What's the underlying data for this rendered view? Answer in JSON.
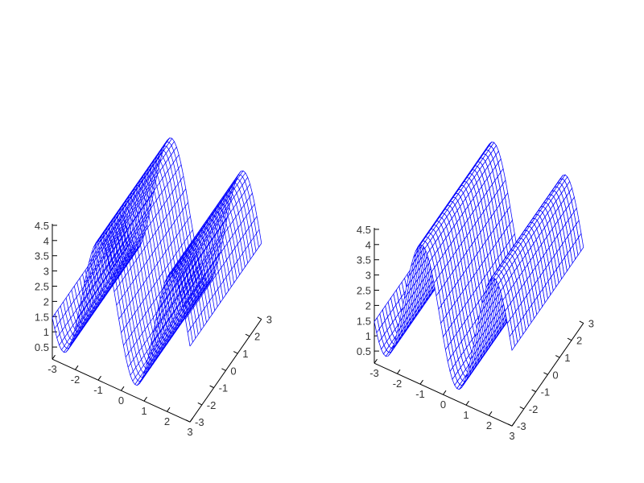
{
  "chart_data": [
    {
      "type": "surface",
      "title": "",
      "xlabel": "",
      "ylabel": "",
      "zlabel": "",
      "grid": false,
      "legend": "none",
      "hidden_surface_removal": false,
      "mesh_color": "#0000ff",
      "x_range": [
        -3,
        3
      ],
      "y_range": [
        -3,
        3
      ],
      "z_range": [
        0,
        4.5
      ],
      "x_ticks": [
        "-3",
        "-2",
        "-1",
        "0",
        "1",
        "2",
        "3"
      ],
      "y_ticks": [
        "-3",
        "-2",
        "-1",
        "0",
        "1",
        "2",
        "3"
      ],
      "z_ticks": [
        "0.5",
        "1",
        "1.5",
        "2",
        "2.5",
        "3",
        "3.5",
        "4",
        "4.5"
      ],
      "surface": "wave ridges running along y; z varies with x between about 0.5 and 4.7"
    },
    {
      "type": "surface",
      "title": "",
      "xlabel": "",
      "ylabel": "",
      "zlabel": "",
      "grid": false,
      "legend": "none",
      "hidden_surface_removal": true,
      "mesh_color": "#0000ff",
      "x_range": [
        -3,
        3
      ],
      "y_range": [
        -3,
        3
      ],
      "z_range": [
        0,
        4.5
      ],
      "x_ticks": [
        "-3",
        "-2",
        "-1",
        "0",
        "1",
        "2",
        "3"
      ],
      "y_ticks": [
        "-3",
        "-2",
        "-1",
        "0",
        "1",
        "2",
        "3"
      ],
      "z_ticks": [
        "0.5",
        "1",
        "1.5",
        "2",
        "2.5",
        "3",
        "3.5",
        "4",
        "4.5"
      ],
      "surface": "wave ridges running along y; z varies with x between about 0.5 and 4.7"
    }
  ]
}
